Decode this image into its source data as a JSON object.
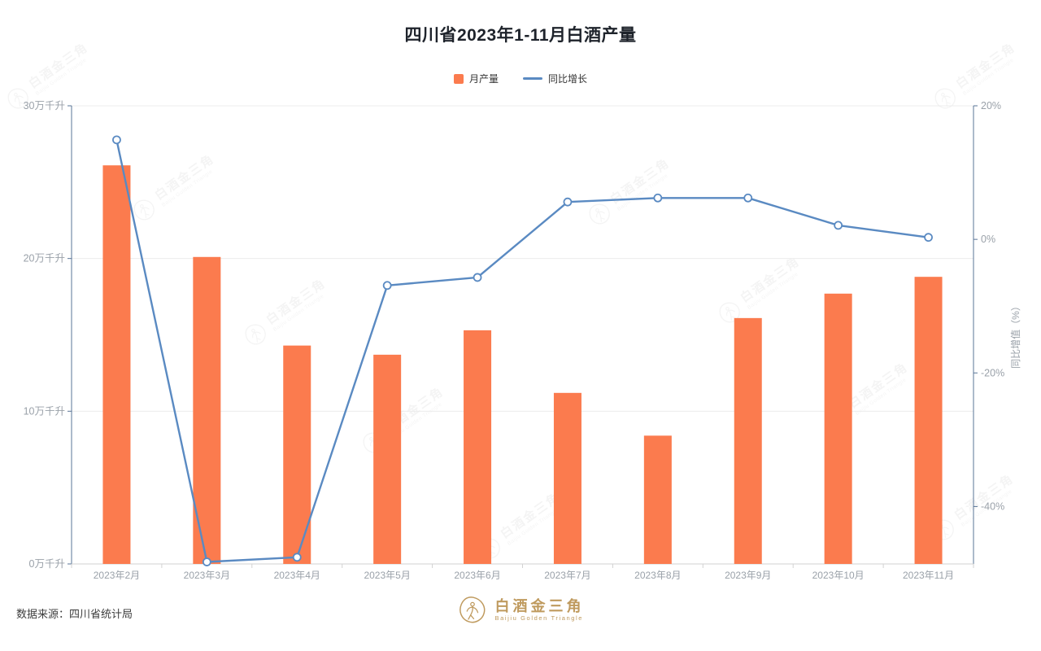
{
  "page": {
    "background": "#ffffff"
  },
  "header": {
    "title": "四川省2023年1-11月白酒产量"
  },
  "legend": {
    "items": [
      {
        "label": "月产量",
        "type": "bar",
        "color": "#fb7b4e"
      },
      {
        "label": "同比增长",
        "type": "line",
        "color": "#5a8ac2"
      }
    ]
  },
  "chart_data": {
    "type": "bar+line",
    "title": "四川省2023年1-11月白酒产量",
    "categories": [
      "2023年2月",
      "2023年3月",
      "2023年4月",
      "2023年5月",
      "2023年6月",
      "2023年7月",
      "2023年8月",
      "2023年9月",
      "2023年10月",
      "2023年11月"
    ],
    "series": [
      {
        "name": "月产量",
        "type": "bar",
        "axis": "left",
        "unit": "万千升",
        "color": "#fb7b4e",
        "values": [
          26.1,
          20.1,
          14.3,
          13.7,
          15.3,
          11.2,
          8.4,
          16.1,
          17.7,
          18.8
        ]
      },
      {
        "name": "同比增长",
        "type": "line",
        "axis": "right",
        "unit": "%",
        "color": "#5a8ac2",
        "values": [
          14.9,
          -48.3,
          -47.6,
          -6.9,
          -5.7,
          5.6,
          6.2,
          6.2,
          2.1,
          0.3
        ]
      }
    ],
    "y_axis_left": {
      "min": 0,
      "max": 30,
      "ticks": [
        {
          "value": 30,
          "label": "30万千升"
        },
        {
          "value": 20,
          "label": "20万千升"
        },
        {
          "value": 10,
          "label": "10万千升"
        },
        {
          "value": 0,
          "label": "0万千升"
        }
      ]
    },
    "y_axis_right": {
      "title": "同比增值（%）",
      "min": -48.6,
      "max": 20,
      "ticks": [
        {
          "value": 20,
          "label": "20%"
        },
        {
          "value": 0,
          "label": "0%"
        },
        {
          "value": -20,
          "label": "-20%"
        },
        {
          "value": -40,
          "label": "-40%"
        }
      ]
    },
    "legend_position": "top-center",
    "grid": true,
    "colors": {
      "grid_line": "#ececec",
      "x_axis_line": "#d2d2d2",
      "y_axis_line": "#5a7597",
      "tick_label": "#9aa1a9"
    }
  },
  "footer": {
    "source": "数据来源：四川省统计局",
    "logo": {
      "cn": "白酒金三角",
      "en": "Baijiu Golden Triangle",
      "color": "#bf9a5e"
    }
  },
  "watermark": {
    "cn": "白酒金三角",
    "en": "Baijiu Golden Triangle"
  }
}
